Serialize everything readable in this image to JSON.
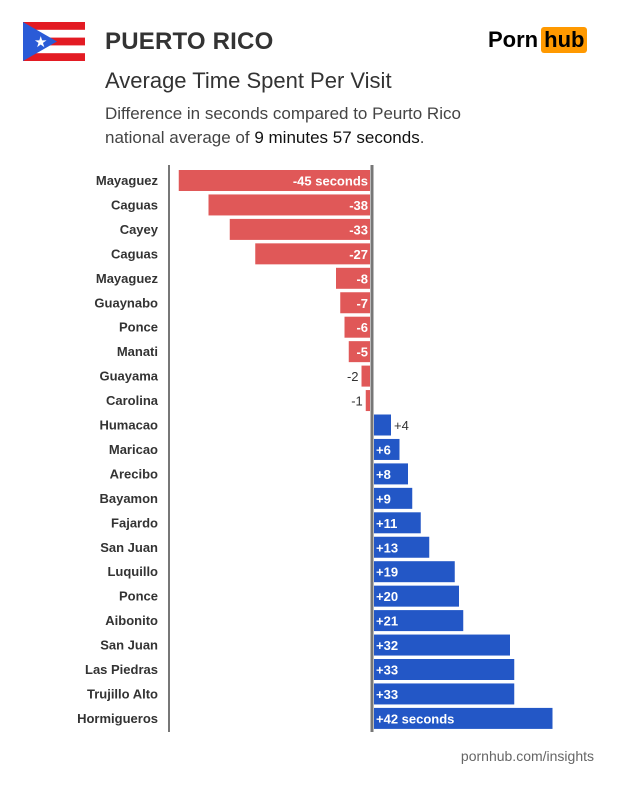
{
  "header": {
    "title": "PUERTO RICO",
    "logo_left": "Porn",
    "logo_right": "hub",
    "subtitle": "Average Time Spent Per Visit",
    "description_line1": "Difference in seconds compared to Peurto Rico",
    "description_prefix": "national average of ",
    "description_value": "9 minutes 57 seconds",
    "description_suffix": "."
  },
  "colors": {
    "negative": "#e05858",
    "positive": "#2357c6",
    "axis": "#777777",
    "logo_accent": "#ff9900"
  },
  "chart_data": {
    "type": "bar",
    "orientation": "horizontal",
    "title": "Average Time Spent Per Visit",
    "categories": [
      "Mayaguez",
      "Caguas",
      "Cayey",
      "Caguas",
      "Mayaguez",
      "Guaynabo",
      "Ponce",
      "Manati",
      "Guayama",
      "Carolina",
      "Humacao",
      "Maricao",
      "Arecibo",
      "Bayamon",
      "Fajardo",
      "San Juan",
      "Luquillo",
      "Ponce",
      "Aibonito",
      "San Juan",
      "Las Piedras",
      "Trujillo Alto",
      "Hormigueros"
    ],
    "values": [
      -45,
      -38,
      -33,
      -27,
      -8,
      -7,
      -6,
      -5,
      -2,
      -1,
      4,
      6,
      8,
      9,
      11,
      13,
      19,
      20,
      21,
      32,
      33,
      33,
      42
    ],
    "labels": [
      "-45 seconds",
      "-38",
      "-33",
      "-27",
      "-8",
      "-7",
      "-6",
      "-5",
      "-2",
      "-1",
      "+4",
      "+6",
      "+8",
      "+9",
      "+11",
      "+13",
      "+19",
      "+20",
      "+21",
      "+32",
      "+33",
      "+33",
      "+42 seconds"
    ],
    "xlim": [
      -45,
      42
    ],
    "grid": false
  },
  "footer": {
    "source": "pornhub.com/insights"
  }
}
